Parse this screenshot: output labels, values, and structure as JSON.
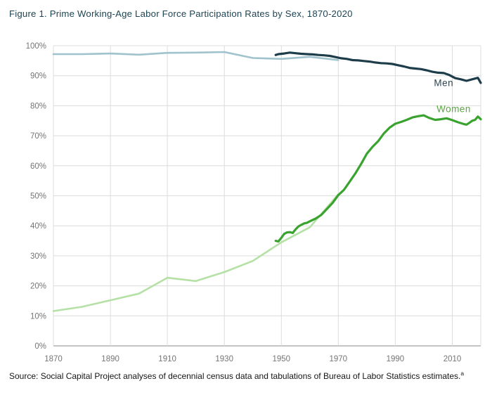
{
  "figure": {
    "title": "Figure 1. Prime Working-Age Labor Force Participation Rates by Sex, 1870-2020",
    "source_text": "Source: Social Capital Project analyses of decennial census data and tabulations of Bureau of Labor Statistics estimates.",
    "footnote_marker": "a"
  },
  "colors": {
    "title_text": "#1e4553",
    "tick_text": "#757575",
    "gridline": "#dcdcdc",
    "axis_line": "#b0b0b0",
    "men_census": "#9fc2cc",
    "men_bls": "#1e3d4b",
    "women_census": "#b5e0a6",
    "women_bls": "#3aa32f"
  },
  "chart_data": {
    "type": "line",
    "title": "Figure 1. Prime Working-Age Labor Force Participation Rates by Sex, 1870-2020",
    "xlabel": "",
    "ylabel": "",
    "xlim": [
      1870,
      2020
    ],
    "ylim": [
      0,
      100
    ],
    "grid": true,
    "legend_position": "inline-labels",
    "x_ticks": [
      1870,
      1890,
      1910,
      1930,
      1950,
      1970,
      1990,
      2010
    ],
    "y_ticks": [
      0,
      10,
      20,
      30,
      40,
      50,
      60,
      70,
      80,
      90,
      100
    ],
    "y_tick_suffix": "%",
    "series": [
      {
        "name": "Men (decennial census)",
        "slug": "men-census",
        "color": "#9fc2cc",
        "width": 2.6,
        "x": [
          1870,
          1880,
          1890,
          1900,
          1910,
          1920,
          1930,
          1940,
          1950,
          1960,
          1970
        ],
        "values": [
          97.2,
          97.2,
          97.4,
          97.0,
          97.6,
          97.7,
          97.9,
          95.9,
          95.6,
          96.3,
          95.2
        ]
      },
      {
        "name": "Women (decennial census)",
        "slug": "women-census",
        "color": "#b5e0a6",
        "width": 2.6,
        "x": [
          1870,
          1880,
          1890,
          1900,
          1910,
          1920,
          1930,
          1940,
          1950,
          1960,
          1970
        ],
        "values": [
          11.6,
          13.0,
          15.2,
          17.4,
          22.7,
          21.6,
          24.6,
          28.3,
          34.5,
          39.5,
          50.5
        ]
      },
      {
        "name": "Men (BLS)",
        "slug": "men-bls",
        "color": "#1e3d4b",
        "width": 3.2,
        "x": [
          1948,
          1949,
          1951,
          1953,
          1955,
          1957,
          1959,
          1961,
          1963,
          1965,
          1967,
          1969,
          1971,
          1973,
          1975,
          1977,
          1979,
          1981,
          1983,
          1985,
          1987,
          1989,
          1991,
          1993,
          1995,
          1997,
          1999,
          2001,
          2003,
          2005,
          2007,
          2009,
          2011,
          2013,
          2015,
          2017,
          2019,
          2020
        ],
        "values": [
          96.9,
          97.2,
          97.4,
          97.7,
          97.5,
          97.3,
          97.2,
          97.1,
          96.9,
          96.8,
          96.6,
          96.2,
          95.8,
          95.6,
          95.2,
          95.1,
          94.9,
          94.7,
          94.4,
          94.2,
          94.1,
          93.9,
          93.5,
          93.1,
          92.6,
          92.4,
          92.2,
          91.8,
          91.3,
          91.0,
          90.9,
          90.2,
          89.2,
          88.8,
          88.3,
          88.8,
          89.3,
          87.6
        ]
      },
      {
        "name": "Women (BLS)",
        "slug": "women-bls",
        "color": "#3aa32f",
        "width": 3.2,
        "x": [
          1948,
          1949,
          1950,
          1951,
          1952,
          1953,
          1954,
          1955,
          1956,
          1957,
          1958,
          1959,
          1960,
          1962,
          1964,
          1966,
          1968,
          1970,
          1972,
          1974,
          1976,
          1978,
          1980,
          1982,
          1984,
          1986,
          1988,
          1990,
          1992,
          1994,
          1996,
          1998,
          2000,
          2002,
          2004,
          2006,
          2008,
          2010,
          2012,
          2014,
          2015,
          2016,
          2017,
          2018,
          2019,
          2020
        ],
        "values": [
          35.0,
          34.8,
          36.0,
          37.3,
          37.8,
          37.9,
          37.6,
          38.8,
          39.8,
          40.3,
          40.8,
          41.0,
          41.5,
          42.4,
          43.6,
          45.6,
          47.6,
          50.2,
          52.0,
          54.7,
          57.5,
          60.6,
          64.0,
          66.3,
          68.2,
          70.8,
          72.7,
          74.0,
          74.6,
          75.3,
          76.1,
          76.5,
          76.8,
          75.9,
          75.3,
          75.5,
          75.8,
          75.2,
          74.5,
          73.9,
          73.7,
          74.3,
          75.0,
          75.3,
          76.4,
          75.5
        ]
      }
    ],
    "annotations": [
      {
        "text": "Men",
        "x": 2007,
        "y": 87.5,
        "color": "#2e4450"
      },
      {
        "text": "Women",
        "x": 2010.5,
        "y": 78.8,
        "color": "#56a93c"
      }
    ]
  }
}
